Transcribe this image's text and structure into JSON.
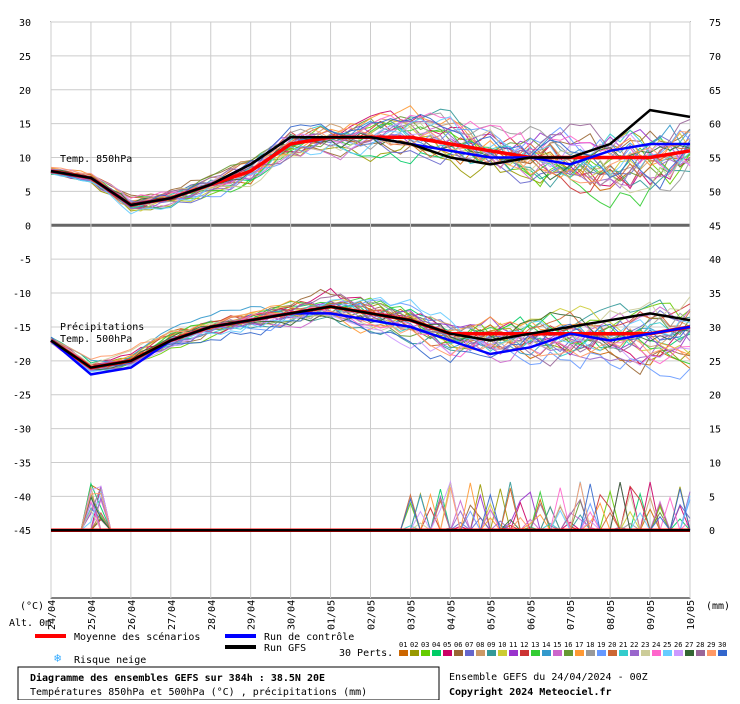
{
  "chart_data": {
    "type": "line",
    "title": "Diagramme des ensembles GEFS sur 384h : 38.5N 20E",
    "subtitle": "Températures 850hPa et 500hPa (°C) , précipitations (mm)",
    "run_info": "Ensemble GEFS du 24/04/2024 - 00Z",
    "copyright": "Copyright 2024 Meteociel.fr",
    "x_ticks": [
      "24/04",
      "25/04",
      "26/04",
      "27/04",
      "28/04",
      "29/04",
      "30/04",
      "01/05",
      "02/05",
      "03/05",
      "04/05",
      "05/05",
      "06/05",
      "07/05",
      "08/05",
      "09/05",
      "10/05"
    ],
    "y_left_ticks": [
      30,
      25,
      20,
      15,
      10,
      5,
      0,
      -5,
      -10,
      -15,
      -20,
      -25,
      -30,
      -35,
      -40,
      -45
    ],
    "y_right_ticks": [
      75,
      70,
      65,
      60,
      55,
      50,
      45,
      40,
      35,
      30,
      25,
      20,
      15,
      10,
      5,
      0
    ],
    "ylim_left": [
      -55,
      30
    ],
    "unit_left": "(°C)",
    "unit_right": "(mm)",
    "alt_label": "Alt. 0m",
    "panel_labels": {
      "t850": "Temp. 850hPa",
      "precip": "Précipitations",
      "t500": "Temp. 500hPa"
    },
    "legend": {
      "mean": "Moyenne des scénarios",
      "control": "Run de contrôle",
      "gfs": "Run GFS",
      "snow": "Risque neige",
      "perts": "30 Perts.",
      "member_labels": [
        "01",
        "02",
        "03",
        "04",
        "05",
        "06",
        "07",
        "08",
        "09",
        "10",
        "11",
        "12",
        "13",
        "14",
        "15",
        "16",
        "17",
        "18",
        "19",
        "20",
        "21",
        "22",
        "23",
        "24",
        "25",
        "26",
        "27",
        "28",
        "29",
        "30"
      ],
      "member_colors": [
        "#cc6600",
        "#999900",
        "#66cc00",
        "#00cc66",
        "#cc0066",
        "#996633",
        "#6666cc",
        "#cc9966",
        "#339999",
        "#cccc33",
        "#9933cc",
        "#cc3333",
        "#33cc33",
        "#3399cc",
        "#cc66cc",
        "#669933",
        "#ff9933",
        "#999999",
        "#6699ff",
        "#cc6633",
        "#33cccc",
        "#9966cc",
        "#cccc99",
        "#ff66cc",
        "#66ccff",
        "#cc99ff",
        "#336633",
        "#996699",
        "#ff9966",
        "#3366cc"
      ]
    },
    "series": [
      {
        "name": "Moyenne des scénarios",
        "color": "#ff0000",
        "t850": [
          8,
          7,
          3,
          4,
          6,
          8,
          12,
          13,
          13,
          13,
          12,
          11,
          10,
          10,
          10,
          10,
          11
        ],
        "t500": [
          -17,
          -21,
          -20,
          -17,
          -15,
          -14,
          -13,
          -12,
          -13,
          -14,
          -16,
          -16,
          -16,
          -16,
          -16,
          -16,
          -15
        ],
        "precip": [
          0,
          0,
          0,
          0,
          0,
          0,
          0,
          0,
          0,
          0,
          0,
          0,
          0,
          0,
          0,
          0,
          0
        ]
      },
      {
        "name": "Run de contrôle",
        "color": "#0000ff",
        "t850": [
          8,
          7,
          3,
          4,
          6,
          9,
          13,
          13,
          13,
          12,
          11,
          10,
          10,
          9,
          11,
          12,
          12
        ],
        "t500": [
          -17,
          -22,
          -21,
          -17,
          -15,
          -14,
          -13,
          -13,
          -14,
          -15,
          -17,
          -19,
          -18,
          -16,
          -17,
          -16,
          -15
        ],
        "precip": [
          0,
          0,
          0,
          0,
          0,
          0,
          0,
          0,
          0,
          0,
          0,
          0,
          0,
          0,
          0,
          0,
          0
        ]
      },
      {
        "name": "Run GFS",
        "color": "#000000",
        "t850": [
          8,
          7,
          3,
          4,
          6,
          9,
          13,
          13,
          13,
          12,
          10,
          9,
          10,
          10,
          12,
          17,
          16
        ],
        "t500": [
          -17,
          -21,
          -20,
          -17,
          -15,
          -14,
          -13,
          -12,
          -13,
          -14,
          -16,
          -17,
          -16,
          -15,
          -14,
          -13,
          -14
        ],
        "precip": [
          0,
          0,
          0,
          0,
          0,
          0,
          0,
          0,
          0,
          0,
          0,
          0,
          0,
          0,
          0,
          0,
          0
        ]
      }
    ]
  }
}
